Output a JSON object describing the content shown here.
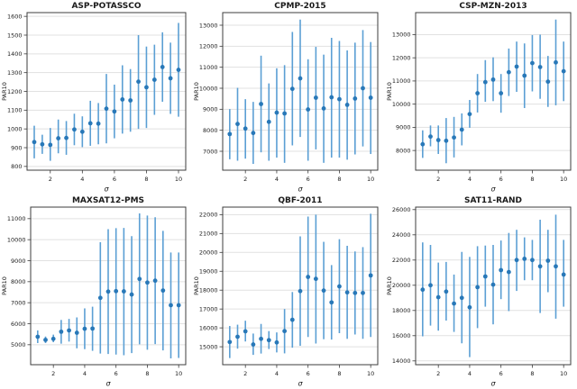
{
  "figure": {
    "background": "#ffffff",
    "marker_color": "#2878b8",
    "errorbar_color": "#5b9fd4",
    "grid_color": "#e1e1e1",
    "spine_color": "#3c3c3c",
    "text_color": "#1a1a1a"
  },
  "chart_data": [
    {
      "type": "scatter",
      "title": "ASP-POTASSCO",
      "xlabel": "σ",
      "ylabel": "PAR10",
      "grid": true,
      "legend": false,
      "xlim": [
        0.55,
        10.45
      ],
      "ylim": [
        780,
        1620
      ],
      "xticks": [
        2,
        4,
        6,
        8,
        10
      ],
      "yticks": [
        800,
        900,
        1000,
        1100,
        1200,
        1300,
        1400,
        1500,
        1600
      ],
      "x": [
        1,
        1.5,
        2,
        2.5,
        3,
        3.5,
        4,
        4.5,
        5,
        5.5,
        6,
        6.5,
        7,
        7.5,
        8,
        8.5,
        9,
        9.5,
        10
      ],
      "y": [
        930,
        918,
        915,
        950,
        952,
        997,
        985,
        1030,
        1028,
        1108,
        1093,
        1157,
        1152,
        1252,
        1222,
        1262,
        1330,
        1270,
        1315
      ],
      "y_low": [
        843,
        867,
        830,
        870,
        862,
        913,
        903,
        910,
        918,
        923,
        950,
        975,
        985,
        1000,
        1005,
        1075,
        1145,
        1080,
        1065
      ],
      "y_high": [
        1017,
        969,
        1005,
        1050,
        1042,
        1081,
        1067,
        1150,
        1138,
        1293,
        1236,
        1339,
        1319,
        1500,
        1439,
        1449,
        1515,
        1460,
        1565
      ]
    },
    {
      "type": "scatter",
      "title": "CPMP-2015",
      "xlabel": "σ",
      "ylabel": "PAR10",
      "grid": true,
      "legend": false,
      "xlim": [
        0.55,
        10.45
      ],
      "ylim": [
        6100,
        13600
      ],
      "xticks": [
        2,
        4,
        6,
        8,
        10
      ],
      "yticks": [
        7000,
        8000,
        9000,
        10000,
        11000,
        12000,
        13000
      ],
      "x": [
        1,
        1.5,
        2,
        2.5,
        3,
        3.5,
        4,
        4.5,
        5,
        5.5,
        6,
        6.5,
        7,
        7.5,
        8,
        8.5,
        9,
        9.5,
        10
      ],
      "y": [
        7820,
        8300,
        8080,
        7870,
        9250,
        8400,
        8840,
        8800,
        9970,
        10470,
        8990,
        9550,
        9040,
        9570,
        9480,
        9210,
        9510,
        10000,
        9550
      ],
      "y_low": [
        6620,
        6550,
        6650,
        6400,
        6950,
        6550,
        6700,
        6450,
        7280,
        7680,
        6550,
        7090,
        6450,
        6700,
        6700,
        6600,
        6850,
        7230,
        6870
      ],
      "y_high": [
        9010,
        10020,
        9480,
        9350,
        11550,
        10230,
        10950,
        11100,
        12680,
        13270,
        11380,
        11970,
        11600,
        12400,
        12250,
        11800,
        12170,
        12770,
        12200
      ]
    },
    {
      "type": "scatter",
      "title": "CSP-MZN-2013",
      "xlabel": "σ",
      "ylabel": "PAR10",
      "grid": true,
      "legend": false,
      "xlim": [
        0.55,
        10.45
      ],
      "ylim": [
        7150,
        13950
      ],
      "xticks": [
        2,
        4,
        6,
        8,
        10
      ],
      "yticks": [
        8000,
        9000,
        10000,
        11000,
        12000,
        13000
      ],
      "x": [
        1,
        1.5,
        2,
        2.5,
        3,
        3.5,
        4,
        4.5,
        5,
        5.5,
        6,
        6.5,
        7,
        7.5,
        8,
        8.5,
        9,
        9.5,
        10
      ],
      "y": [
        8270,
        8600,
        8450,
        8420,
        8560,
        8900,
        9570,
        10470,
        10950,
        11060,
        10470,
        11380,
        11620,
        11230,
        11770,
        11600,
        10970,
        11800,
        11420
      ],
      "y_low": [
        7680,
        8180,
        7850,
        7450,
        7700,
        8220,
        8980,
        9640,
        10100,
        10130,
        9630,
        10350,
        10530,
        9830,
        10550,
        10230,
        9880,
        9950,
        10130
      ],
      "y_high": [
        8870,
        9080,
        9080,
        9400,
        9450,
        9600,
        10180,
        11300,
        11900,
        12020,
        11300,
        12400,
        12700,
        12620,
        12980,
        13000,
        12080,
        13650,
        12700
      ]
    },
    {
      "type": "scatter",
      "title": "MAXSAT12-PMS",
      "xlabel": "σ",
      "ylabel": "PAR10",
      "grid": true,
      "legend": false,
      "xlim": [
        0.55,
        10.45
      ],
      "ylim": [
        4050,
        11550
      ],
      "xticks": [
        2,
        4,
        6,
        8,
        10
      ],
      "yticks": [
        5000,
        6000,
        7000,
        8000,
        9000,
        10000,
        11000
      ],
      "x": [
        1,
        1.5,
        2,
        2.5,
        3,
        3.5,
        4,
        4.5,
        5,
        5.5,
        6,
        6.5,
        7,
        7.5,
        8,
        8.5,
        9,
        9.5,
        10
      ],
      "y": [
        5380,
        5230,
        5280,
        5620,
        5680,
        5570,
        5760,
        5770,
        7230,
        7530,
        7550,
        7540,
        7390,
        8130,
        7960,
        8050,
        7580,
        6880,
        6880
      ],
      "y_low": [
        5080,
        5080,
        5120,
        5050,
        5150,
        4830,
        4790,
        4710,
        4580,
        4560,
        4530,
        4500,
        4600,
        5020,
        4760,
        5030,
        4730,
        4350,
        4370
      ],
      "y_high": [
        5680,
        5390,
        5480,
        6180,
        6230,
        6300,
        6730,
        6810,
        9880,
        10500,
        10550,
        10560,
        10170,
        11250,
        11150,
        11070,
        10420,
        9390,
        9390
      ]
    },
    {
      "type": "scatter",
      "title": "QBF-2011",
      "xlabel": "σ",
      "ylabel": "PAR10",
      "grid": true,
      "legend": false,
      "xlim": [
        0.55,
        10.45
      ],
      "ylim": [
        14050,
        22400
      ],
      "xticks": [
        2,
        4,
        6,
        8,
        10
      ],
      "yticks": [
        15000,
        16000,
        17000,
        18000,
        19000,
        20000,
        21000,
        22000
      ],
      "x": [
        1,
        1.5,
        2,
        2.5,
        3,
        3.5,
        4,
        4.5,
        5,
        5.5,
        6,
        6.5,
        7,
        7.5,
        8,
        8.5,
        9,
        9.5,
        10
      ],
      "y": [
        15250,
        15530,
        15820,
        15120,
        15420,
        15350,
        15230,
        15830,
        16430,
        17950,
        18700,
        18600,
        17980,
        17350,
        18200,
        17880,
        17850,
        17850,
        18780
      ],
      "y_low": [
        14400,
        14900,
        15280,
        14570,
        14640,
        14880,
        14700,
        14650,
        14950,
        15050,
        15520,
        15170,
        15400,
        15380,
        15720,
        15420,
        15650,
        15420,
        15520
      ],
      "y_high": [
        16100,
        16170,
        16380,
        15700,
        16210,
        15830,
        15760,
        17000,
        17900,
        20850,
        21900,
        22000,
        20560,
        19330,
        20700,
        20350,
        20050,
        20280,
        22050
      ]
    },
    {
      "type": "scatter",
      "title": "SAT11-RAND",
      "xlabel": "σ",
      "ylabel": "PAR10",
      "grid": true,
      "legend": false,
      "xlim": [
        0.55,
        10.45
      ],
      "ylim": [
        13700,
        26200
      ],
      "xticks": [
        2,
        4,
        6,
        8,
        10
      ],
      "yticks": [
        14000,
        16000,
        18000,
        20000,
        22000,
        24000,
        26000
      ],
      "x": [
        1,
        1.5,
        2,
        2.5,
        3,
        3.5,
        4,
        4.5,
        5,
        5.5,
        6,
        6.5,
        7,
        7.5,
        8,
        8.5,
        9,
        9.5,
        10
      ],
      "y": [
        19650,
        20000,
        19050,
        19500,
        18550,
        19000,
        18250,
        19850,
        20700,
        20050,
        21200,
        21050,
        22000,
        22100,
        22000,
        21500,
        21950,
        21500,
        20850
      ],
      "y_low": [
        15950,
        16800,
        16400,
        17200,
        16300,
        15400,
        14300,
        16600,
        18300,
        16900,
        18900,
        17950,
        19550,
        20400,
        20400,
        17800,
        19450,
        17350,
        18300
      ],
      "y_high": [
        23400,
        23200,
        21800,
        21850,
        20850,
        22650,
        22250,
        23100,
        23150,
        23200,
        23550,
        24150,
        24400,
        23800,
        23600,
        25200,
        24400,
        25600,
        23600
      ]
    }
  ]
}
